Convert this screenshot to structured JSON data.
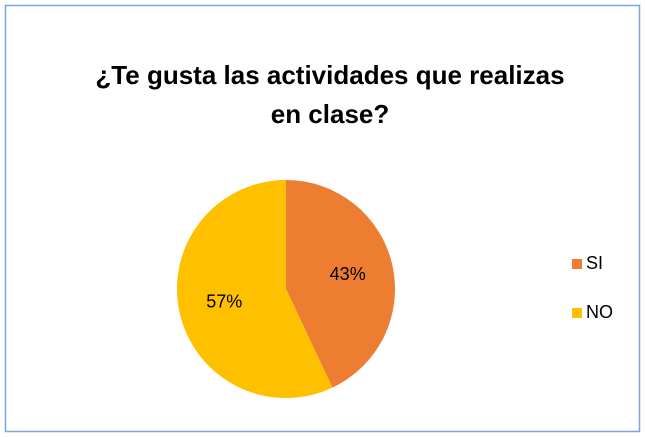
{
  "chart_data": {
    "type": "pie",
    "title": "¿Te gusta las actividades que realizas en clase?",
    "categories": [
      "SI",
      "NO"
    ],
    "values": [
      43,
      57
    ],
    "value_labels": [
      "43%",
      "57%"
    ],
    "colors": [
      "#ED7D31",
      "#FFC000"
    ],
    "legend": "right"
  }
}
